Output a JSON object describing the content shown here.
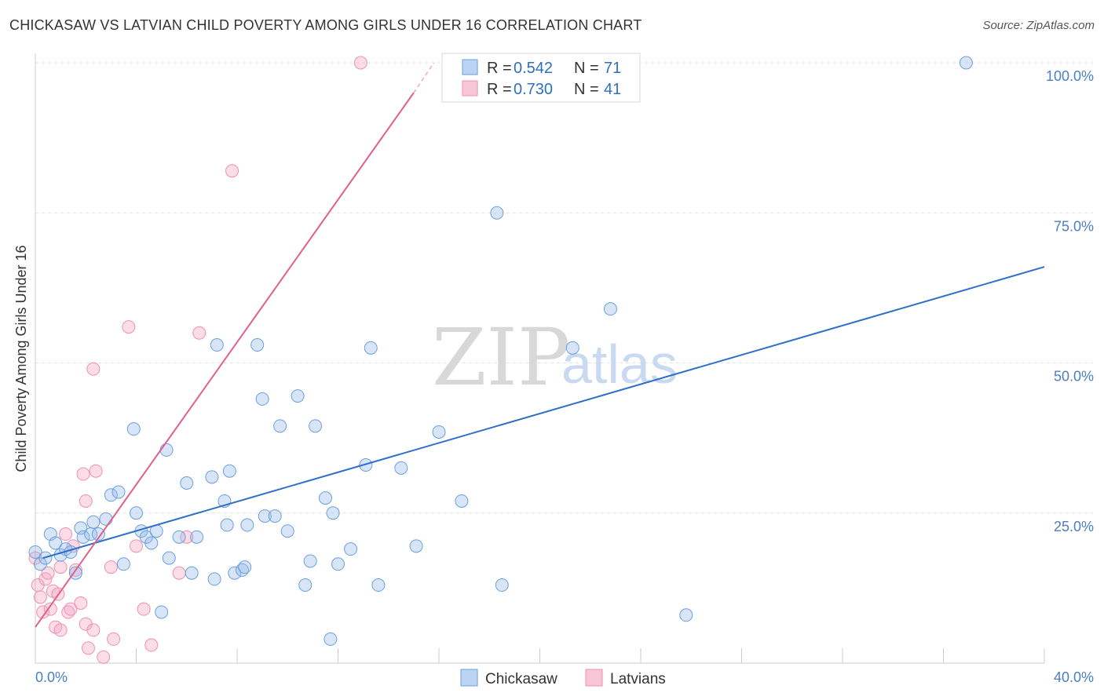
{
  "header": {
    "title": "CHICKASAW VS LATVIAN CHILD POVERTY AMONG GIRLS UNDER 16 CORRELATION CHART",
    "source": "Source: ZipAtlas.com"
  },
  "legend": {
    "rows": [
      {
        "r_label": "R =",
        "r_value": "0.542",
        "n_label": "N =",
        "n_value": "71"
      },
      {
        "r_label": "R =",
        "r_value": "0.730",
        "n_label": "N =",
        "n_value": "41"
      }
    ]
  },
  "watermark": {
    "zip": "ZIP",
    "atlas": "atlas"
  },
  "chart_data": {
    "type": "scatter",
    "title": "CHICKASAW VS LATVIAN CHILD POVERTY AMONG GIRLS UNDER 16 CORRELATION CHART",
    "xlabel": "",
    "ylabel": "Child Poverty Among Girls Under 16",
    "xlim": [
      0,
      40
    ],
    "ylim": [
      0,
      100
    ],
    "x_tick_labels": [
      "0.0%",
      "40.0%"
    ],
    "y_ticks": [
      25,
      50,
      75,
      100
    ],
    "y_tick_labels": [
      "25.0%",
      "50.0%",
      "75.0%",
      "100.0%"
    ],
    "grid": true,
    "legend_position": "top-center",
    "colors": {
      "Chickasaw": "#6a9fe0",
      "Latvians": "#f08fb0",
      "Chickasaw_line": "#2f6fc8",
      "Latvians_line": "#e0608a"
    },
    "series": [
      {
        "name": "Chickasaw",
        "r": 0.542,
        "n": 71,
        "trend": {
          "x": [
            0.3,
            40
          ],
          "y": [
            17.5,
            66
          ]
        },
        "points": [
          [
            0.0,
            18.5
          ],
          [
            0.2,
            16.5
          ],
          [
            0.4,
            17.5
          ],
          [
            0.6,
            21.5
          ],
          [
            0.8,
            20
          ],
          [
            1.0,
            18
          ],
          [
            1.2,
            19
          ],
          [
            1.4,
            18.5
          ],
          [
            1.6,
            15
          ],
          [
            1.8,
            22.5
          ],
          [
            1.9,
            21
          ],
          [
            2.2,
            21.5
          ],
          [
            2.3,
            23.5
          ],
          [
            2.5,
            21.5
          ],
          [
            2.8,
            24
          ],
          [
            3.0,
            28
          ],
          [
            3.3,
            28.5
          ],
          [
            3.5,
            16.5
          ],
          [
            3.9,
            39
          ],
          [
            4.0,
            25
          ],
          [
            4.2,
            22
          ],
          [
            4.4,
            21
          ],
          [
            4.6,
            20
          ],
          [
            4.8,
            22
          ],
          [
            5.0,
            8.5
          ],
          [
            5.2,
            35.5
          ],
          [
            5.3,
            17.5
          ],
          [
            5.7,
            21
          ],
          [
            6.0,
            30
          ],
          [
            6.2,
            15
          ],
          [
            6.4,
            21
          ],
          [
            7.0,
            31
          ],
          [
            7.1,
            14
          ],
          [
            7.2,
            53
          ],
          [
            7.5,
            27
          ],
          [
            7.6,
            23
          ],
          [
            7.7,
            32
          ],
          [
            7.9,
            15
          ],
          [
            8.2,
            15.5
          ],
          [
            8.3,
            16
          ],
          [
            8.4,
            23
          ],
          [
            8.8,
            53
          ],
          [
            9.0,
            44
          ],
          [
            9.1,
            24.5
          ],
          [
            9.5,
            24.5
          ],
          [
            9.7,
            39.5
          ],
          [
            10.0,
            22
          ],
          [
            10.4,
            44.5
          ],
          [
            10.7,
            13
          ],
          [
            10.9,
            17
          ],
          [
            11.1,
            39.5
          ],
          [
            11.5,
            27.5
          ],
          [
            11.7,
            4
          ],
          [
            11.8,
            25
          ],
          [
            12.0,
            16.5
          ],
          [
            12.5,
            19
          ],
          [
            13.1,
            33
          ],
          [
            13.3,
            52.5
          ],
          [
            13.6,
            13
          ],
          [
            14.5,
            32.5
          ],
          [
            15.1,
            19.5
          ],
          [
            16.0,
            38.5
          ],
          [
            16.9,
            27
          ],
          [
            18.3,
            75
          ],
          [
            18.5,
            13
          ],
          [
            21.3,
            52.5
          ],
          [
            22.8,
            59
          ],
          [
            25.8,
            8
          ],
          [
            36.9,
            100
          ]
        ]
      },
      {
        "name": "Latvians",
        "r": 0.73,
        "n": 41,
        "trend": {
          "x": [
            0,
            15
          ],
          "y": [
            6,
            95
          ],
          "dashed_to": {
            "x": 15.8,
            "y": 100
          }
        },
        "points": [
          [
            0.0,
            17.5
          ],
          [
            0.1,
            13
          ],
          [
            0.2,
            11
          ],
          [
            0.3,
            8.5
          ],
          [
            0.4,
            14
          ],
          [
            0.5,
            15
          ],
          [
            0.6,
            9
          ],
          [
            0.7,
            12
          ],
          [
            0.8,
            6
          ],
          [
            0.9,
            11.5
          ],
          [
            1.0,
            5.5
          ],
          [
            1.0,
            16
          ],
          [
            1.2,
            21.5
          ],
          [
            1.3,
            8.5
          ],
          [
            1.4,
            9
          ],
          [
            1.5,
            19.5
          ],
          [
            1.6,
            15.5
          ],
          [
            1.8,
            10
          ],
          [
            1.9,
            31.5
          ],
          [
            2.0,
            27
          ],
          [
            2.0,
            6.5
          ],
          [
            2.1,
            2.5
          ],
          [
            2.3,
            49
          ],
          [
            2.3,
            5.5
          ],
          [
            2.4,
            32
          ],
          [
            2.7,
            1
          ],
          [
            3.0,
            16
          ],
          [
            3.1,
            4
          ],
          [
            3.7,
            56
          ],
          [
            4.0,
            19.5
          ],
          [
            4.3,
            9
          ],
          [
            4.6,
            3
          ],
          [
            5.7,
            15
          ],
          [
            6.0,
            21
          ],
          [
            6.5,
            55
          ],
          [
            7.8,
            82
          ],
          [
            12.9,
            100
          ]
        ]
      }
    ]
  },
  "bottom_legend": {
    "items": [
      "Chickasaw",
      "Latvians"
    ]
  }
}
